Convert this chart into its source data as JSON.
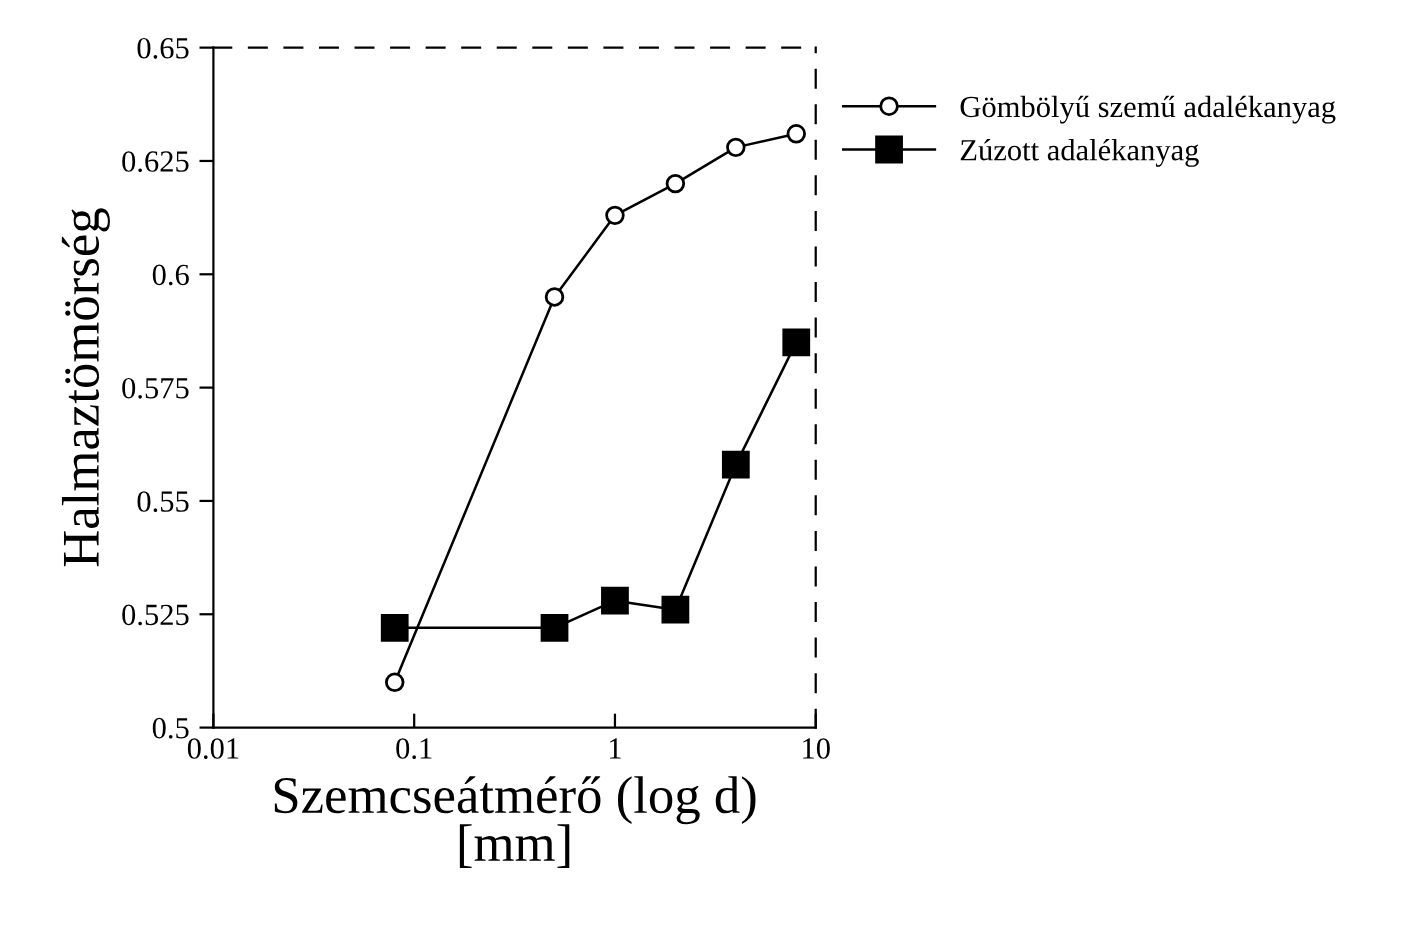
{
  "chart_data": {
    "type": "line",
    "xlabel": "Szemcseátmérő (log d)\n[mm]",
    "ylabel": "Halmaztömörség",
    "log": "x",
    "xlim": [
      0.01,
      10
    ],
    "xticks": [
      0.01,
      0.1,
      1,
      10
    ],
    "ylim": [
      0.5,
      0.65
    ],
    "yticks": [
      0.5,
      0.525,
      0.55,
      0.575,
      0.6,
      0.625,
      0.65
    ],
    "grid": false,
    "legend": "top right",
    "line_style": "solid",
    "series": [
      {
        "name": "Gömbölyű szemű adalékanyag",
        "color": "#000000",
        "marker": "circle",
        "x": [
          0.08,
          0.5,
          1,
          2,
          4,
          8
        ],
        "values": [
          0.51,
          0.595,
          0.613,
          0.62,
          0.628,
          0.631
        ]
      },
      {
        "name": "Zúzott adalékanyag",
        "color": "#000000",
        "marker": "square",
        "x": [
          0.08,
          0.5,
          1,
          2,
          4,
          8
        ],
        "values": [
          0.522,
          0.522,
          0.528,
          0.526,
          0.558,
          0.585
        ]
      }
    ]
  }
}
